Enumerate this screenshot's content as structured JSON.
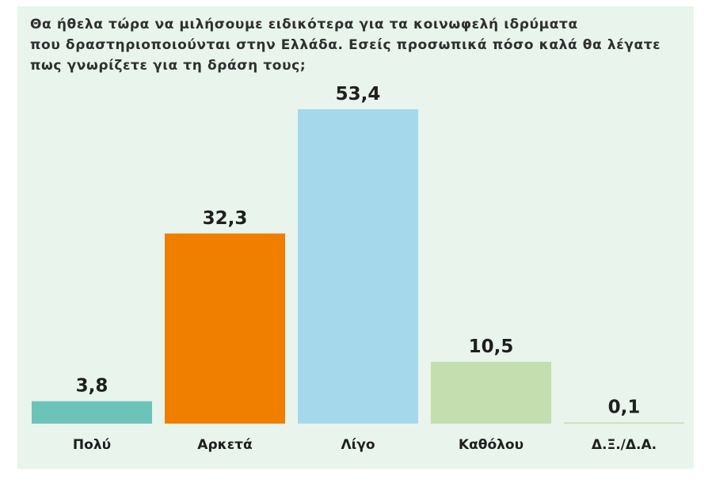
{
  "chart_data": {
    "type": "bar",
    "title": "Θα ήθελα τώρα να μιλήσουμε ειδικότερα για τα κοινωφελή ιδρύματα που δραστηριοποιούνται στην Ελλάδα. Εσείς προσωπικά πόσο καλά θα λέγατε πως γνωρίζετε για τη δράση τους;",
    "title_lines": [
      "Θα ήθελα τώρα να μιλήσουμε ειδικότερα για τα κοινωφελή ιδρύματα",
      "που δραστηριοποιούνται στην Ελλάδα. Εσείς προσωπικά πόσο καλά θα λέγατε",
      "πως γνωρίζετε για τη δράση τους;"
    ],
    "categories": [
      "Πολύ",
      "Αρκετά",
      "Λίγο",
      "Καθόλου",
      "Δ.Ξ./Δ.Α."
    ],
    "values": [
      3.8,
      32.3,
      53.4,
      10.5,
      0.1
    ],
    "value_labels": [
      "3,8",
      "32,3",
      "53,4",
      "10,5",
      "0,1"
    ],
    "colors": [
      "#6cc3b9",
      "#f07f00",
      "#a6d8ec",
      "#c4deb0",
      "#c4deb0"
    ],
    "background_color": "#e8f4ec",
    "xlabel": "",
    "ylabel": "",
    "ylim": [
      0,
      53.4
    ],
    "grid": false,
    "legend": "none"
  }
}
